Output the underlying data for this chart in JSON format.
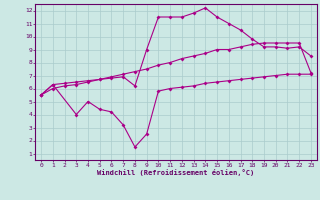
{
  "xlabel": "Windchill (Refroidissement éolien,°C)",
  "bg_color": "#cce8e4",
  "grid_color": "#aacccc",
  "line_color": "#aa0088",
  "xlim": [
    -0.5,
    23.5
  ],
  "ylim": [
    0.5,
    12.5
  ],
  "xticks": [
    0,
    1,
    2,
    3,
    4,
    5,
    6,
    7,
    8,
    9,
    10,
    11,
    12,
    13,
    14,
    15,
    16,
    17,
    18,
    19,
    20,
    21,
    22,
    23
  ],
  "yticks": [
    1,
    2,
    3,
    4,
    5,
    6,
    7,
    8,
    9,
    10,
    11,
    12
  ],
  "line1_x": [
    0,
    1,
    2,
    3,
    4,
    5,
    6,
    7,
    8,
    9,
    10,
    11,
    12,
    13,
    14,
    15,
    16,
    17,
    18,
    19,
    20,
    21,
    22,
    23
  ],
  "line1_y": [
    5.5,
    6.3,
    6.4,
    6.5,
    6.6,
    6.7,
    6.8,
    6.9,
    6.2,
    9.0,
    11.5,
    11.5,
    11.5,
    11.8,
    12.2,
    11.5,
    11.0,
    10.5,
    9.8,
    9.2,
    9.2,
    9.1,
    9.2,
    8.5
  ],
  "line2_x": [
    0,
    1,
    2,
    3,
    4,
    5,
    6,
    7,
    8,
    9,
    10,
    11,
    12,
    13,
    14,
    15,
    16,
    17,
    18,
    19,
    20,
    21,
    22,
    23
  ],
  "line2_y": [
    5.5,
    6.0,
    6.2,
    6.3,
    6.5,
    6.7,
    6.9,
    7.1,
    7.3,
    7.5,
    7.8,
    8.0,
    8.3,
    8.5,
    8.7,
    9.0,
    9.0,
    9.2,
    9.4,
    9.5,
    9.5,
    9.5,
    9.5,
    7.2
  ],
  "line3_x": [
    0,
    1,
    3,
    4,
    5,
    6,
    7,
    8,
    9,
    10,
    11,
    12,
    13,
    14,
    15,
    16,
    17,
    18,
    19,
    20,
    21,
    22,
    23
  ],
  "line3_y": [
    5.5,
    6.3,
    4.0,
    5.0,
    4.4,
    4.2,
    3.2,
    1.5,
    2.5,
    5.8,
    6.0,
    6.1,
    6.2,
    6.4,
    6.5,
    6.6,
    6.7,
    6.8,
    6.9,
    7.0,
    7.1,
    7.1,
    7.1
  ]
}
